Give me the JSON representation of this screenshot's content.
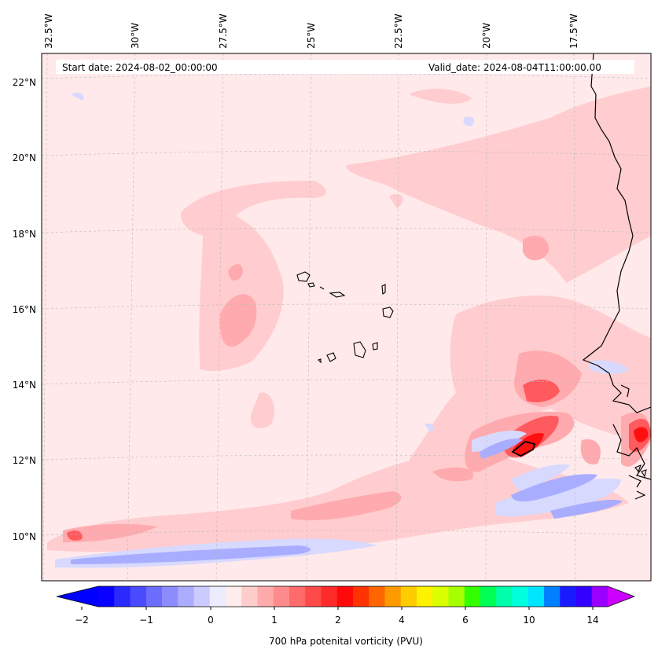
{
  "map": {
    "start_date": "Start date: 2024-08-02_00:00:00",
    "valid_date": "Valid_date: 2024-08-04T11:00:00.00",
    "lon_labels": [
      "32.5°W",
      "30°W",
      "27.5°W",
      "25°W",
      "22.5°W",
      "20°W",
      "17.5°W"
    ],
    "lat_labels": [
      "22°N",
      "20°N",
      "18°N",
      "16°N",
      "14°N",
      "12°N",
      "10°N"
    ],
    "field": "700 hPa potential vorticity",
    "colors": {
      "background_field": "#ffe9ea",
      "light_red": "#ffcccf",
      "mid_red": "#ffaaae",
      "strong_red": "#ff5a5e",
      "deep_red": "#ff1010",
      "light_blue": "#d7d9ff",
      "mid_blue": "#a9adff",
      "coastline": "#000000"
    }
  },
  "colorbar": {
    "tick_labels": [
      "−2",
      "−1",
      "0",
      "1",
      "2",
      "4",
      "6",
      "10",
      "14"
    ],
    "label": "700 hPa potenital vorticity (PVU)",
    "colors": [
      "#0a00ff",
      "#2a2aff",
      "#4a4aff",
      "#6c6cff",
      "#8c8cff",
      "#ababff",
      "#cbcbff",
      "#ececff",
      "#ffecec",
      "#ffcccc",
      "#ffabab",
      "#ff8c8c",
      "#ff6a6a",
      "#ff4a4a",
      "#ff2a2a",
      "#ff0a0a",
      "#ff3300",
      "#ff6600",
      "#ff9900",
      "#ffcc00",
      "#fff200",
      "#d9ff00",
      "#a6ff00",
      "#33ff00",
      "#00ff55",
      "#00ffaa",
      "#00ffdd",
      "#00e5ff",
      "#0080ff",
      "#1a1aff",
      "#3300ff",
      "#9900ff"
    ],
    "extend_low_color": "#0000ff",
    "extend_high_color": "#cc00ff"
  }
}
